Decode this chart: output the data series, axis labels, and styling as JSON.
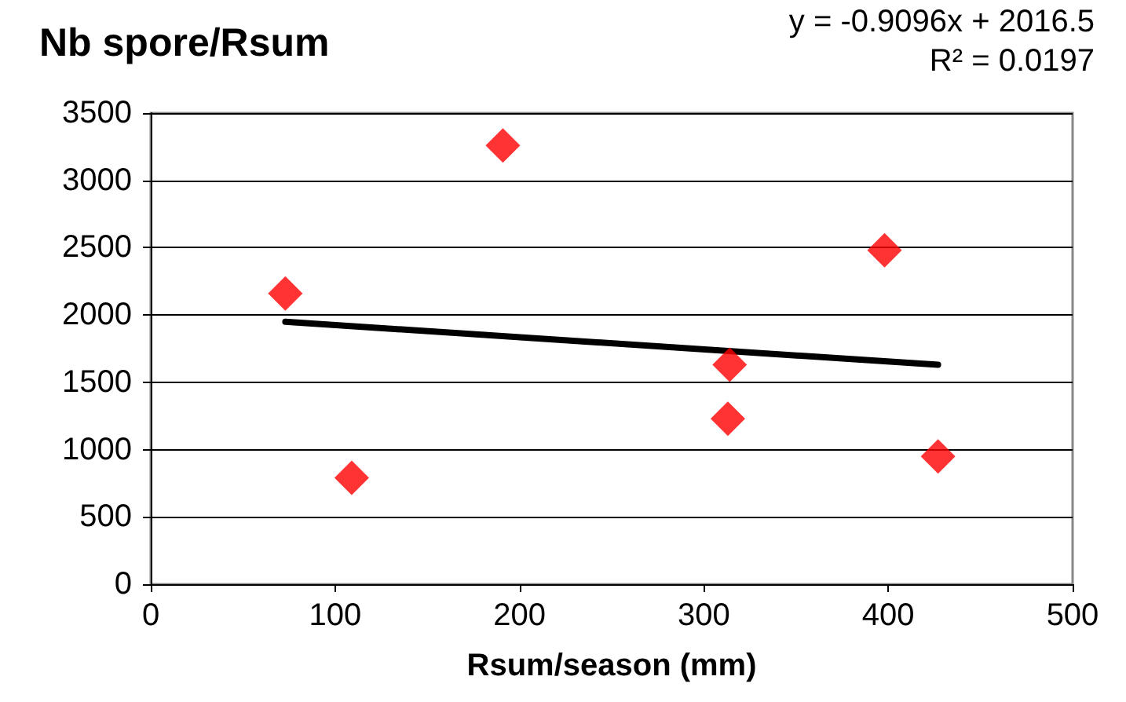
{
  "chart_data": {
    "type": "scatter",
    "title": "Nb spore/Rsum",
    "xlabel": "Rsum/season (mm)",
    "annotations": [
      "y = -0.9096x + 2016.5",
      "R² = 0.0197"
    ],
    "series": [
      {
        "color": "#ff0000",
        "marker": "diamond",
        "x": [
          73,
          109,
          191,
          314,
          313,
          398,
          427
        ],
        "values": [
          2160,
          790,
          3260,
          1630,
          1230,
          2480,
          950
        ]
      },
      {
        "type": "line",
        "color": "#000000",
        "marker": "none",
        "line_style": "solid",
        "x": [
          73,
          427
        ],
        "values": [
          1950,
          1630
        ]
      }
    ],
    "xlim": [
      0,
      500
    ],
    "xticks": [
      0,
      100,
      200,
      300,
      400,
      500
    ],
    "ylim": [
      0,
      3500
    ],
    "yticks": [
      0,
      500,
      1000,
      1500,
      2000,
      2500,
      3000,
      3500
    ],
    "grid": "y"
  }
}
